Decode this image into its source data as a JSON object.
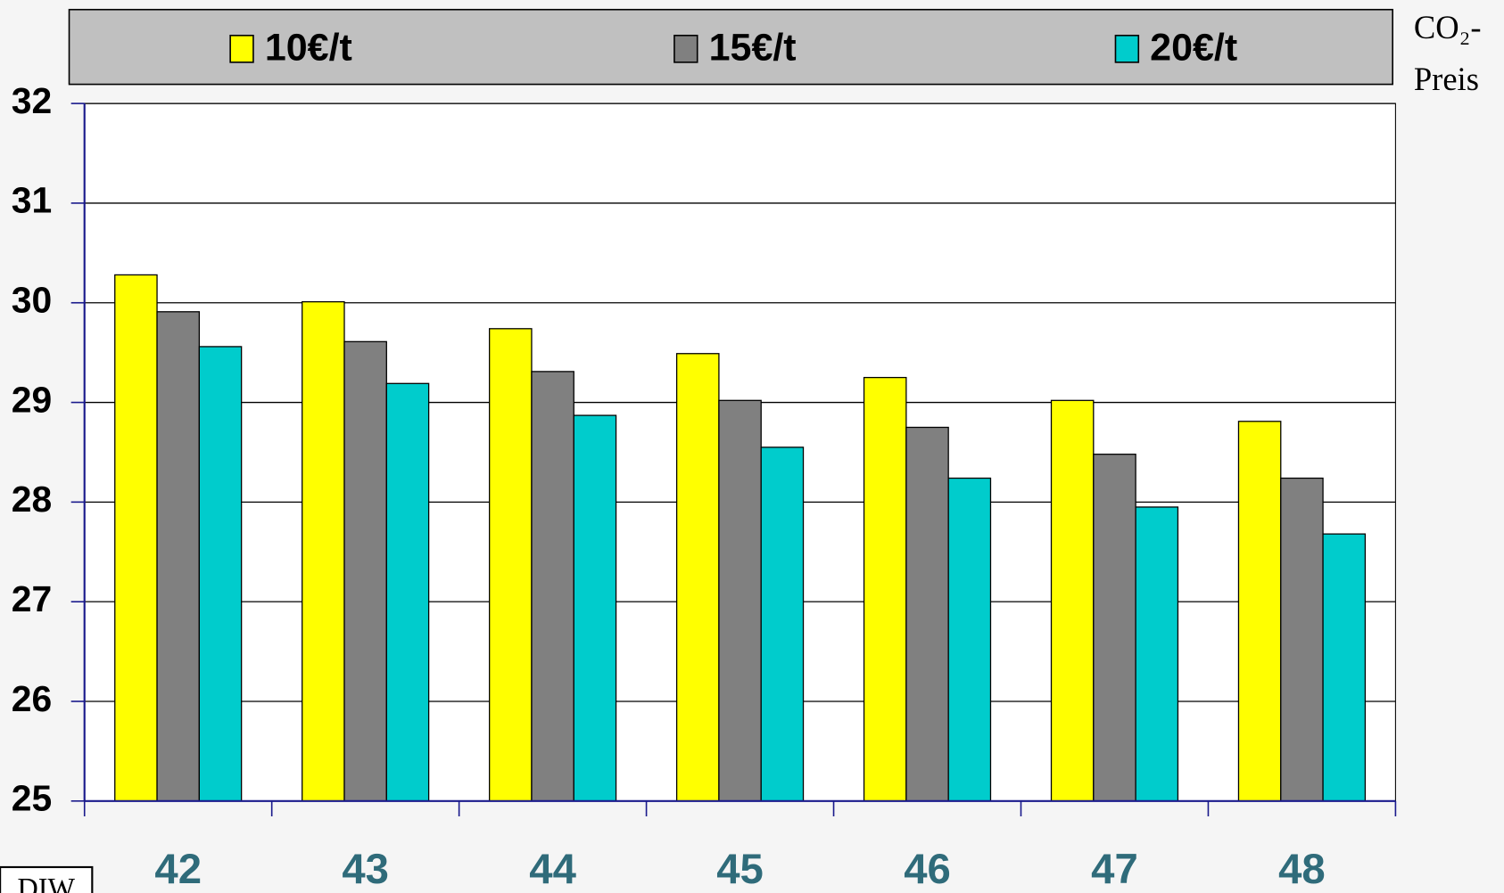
{
  "chart_data": {
    "type": "bar",
    "legend_title": [
      "CO₂-",
      "Preis"
    ],
    "logo": "DIW",
    "categories": [
      "42",
      "43",
      "44",
      "45",
      "46",
      "47",
      "48"
    ],
    "series": [
      {
        "name": "10€/t",
        "color": "#ffff00",
        "values": [
          30.28,
          30.01,
          29.74,
          29.49,
          29.25,
          29.02,
          28.81
        ]
      },
      {
        "name": "15€/t",
        "color": "#808080",
        "values": [
          29.91,
          29.61,
          29.31,
          29.02,
          28.75,
          28.48,
          28.24
        ]
      },
      {
        "name": "20€/t",
        "color": "#00cccc",
        "values": [
          29.56,
          29.19,
          28.87,
          28.55,
          28.24,
          27.95,
          27.68
        ]
      }
    ],
    "ylim": [
      25,
      32
    ],
    "yticks": [
      25,
      26,
      27,
      28,
      29,
      30,
      31,
      32
    ],
    "grid": true,
    "legend": "top"
  }
}
